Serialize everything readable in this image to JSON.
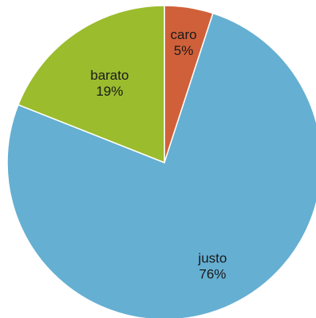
{
  "chart_data": {
    "type": "pie",
    "slices": [
      {
        "name": "caro",
        "value": 5,
        "label": "5%",
        "color": "#D0603A"
      },
      {
        "name": "justo",
        "value": 76,
        "label": "76%",
        "color": "#65AFD2"
      },
      {
        "name": "barato",
        "value": 19,
        "label": "19%",
        "color": "#9BBC2D"
      }
    ],
    "start_angle_deg": 0,
    "direction": "clockwise",
    "legend": "none",
    "label_style": "name above percent, inside slice"
  }
}
